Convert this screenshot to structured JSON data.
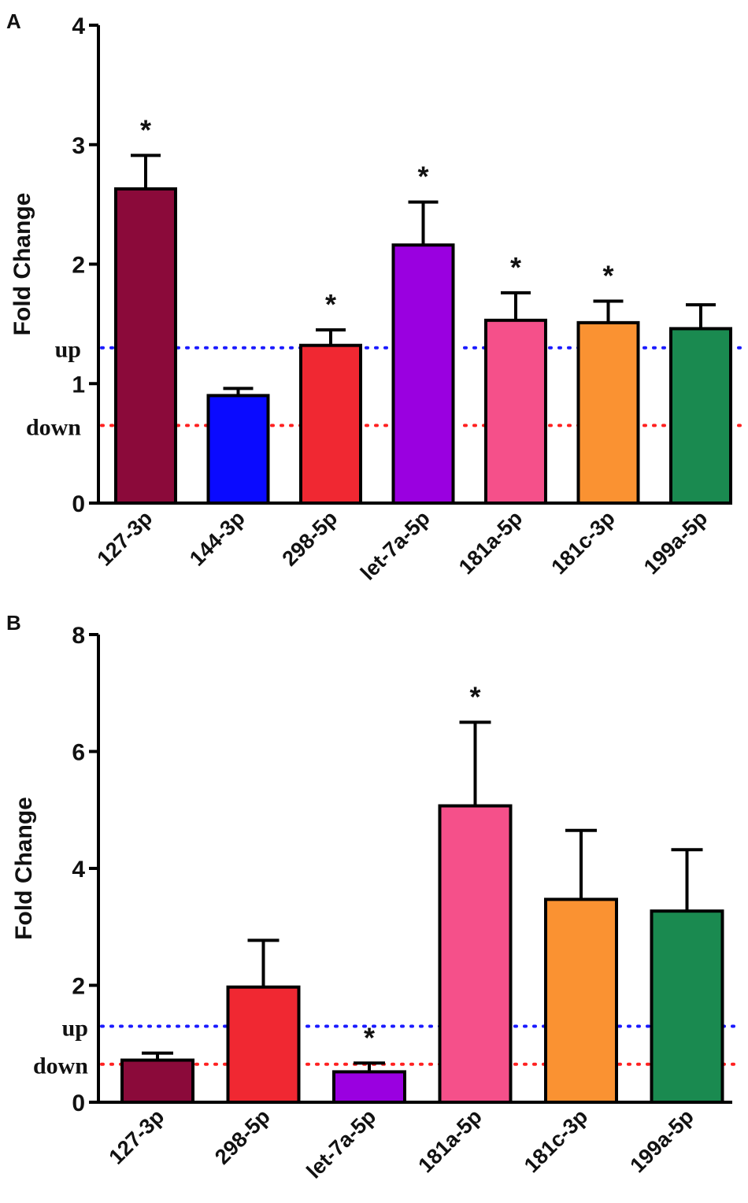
{
  "chart_data": [
    {
      "panel": "A",
      "type": "bar",
      "ylabel": "Fold Change",
      "ylim": [
        0,
        4
      ],
      "yticks": [
        "0",
        "1",
        "2",
        "3",
        "4"
      ],
      "categories": [
        "127-3p",
        "144-3p",
        "298-5p",
        "let-7a-5p",
        "181a-5p",
        "181c-3p",
        "199a-5p"
      ],
      "values": [
        2.63,
        0.9,
        1.32,
        2.16,
        1.53,
        1.51,
        1.46
      ],
      "errors": [
        0.28,
        0.06,
        0.13,
        0.36,
        0.23,
        0.18,
        0.2
      ],
      "significant": [
        true,
        false,
        true,
        true,
        true,
        true,
        false
      ],
      "significance_marker": "*",
      "colors": [
        "#8b0a3a",
        "#0a0aff",
        "#f02832",
        "#9a00e0",
        "#f5508a",
        "#fa9232",
        "#1a8a50"
      ],
      "ref_lines": [
        {
          "label": "up",
          "value": 1.3,
          "color": "#1a1aff"
        },
        {
          "label": "down",
          "value": 0.65,
          "color": "#ff2020"
        }
      ]
    },
    {
      "panel": "B",
      "type": "bar",
      "ylabel": "Fold Change",
      "ylim": [
        0,
        8
      ],
      "yticks": [
        "0",
        "2",
        "4",
        "6",
        "8"
      ],
      "categories": [
        "127-3p",
        "298-5p",
        "let-7a-5p",
        "181a-5p",
        "181c-3p",
        "199a-5p"
      ],
      "values": [
        0.72,
        1.97,
        0.52,
        5.07,
        3.47,
        3.27
      ],
      "errors": [
        0.12,
        0.8,
        0.15,
        1.43,
        1.18,
        1.05
      ],
      "significant": [
        false,
        false,
        true,
        true,
        false,
        false
      ],
      "significance_marker": "*",
      "colors": [
        "#8b0a3a",
        "#f02832",
        "#9a00e0",
        "#f5508a",
        "#fa9232",
        "#1a8a50"
      ],
      "ref_lines": [
        {
          "label": "up",
          "value": 1.3,
          "color": "#1a1aff"
        },
        {
          "label": "down",
          "value": 0.65,
          "color": "#ff2020"
        }
      ]
    }
  ]
}
